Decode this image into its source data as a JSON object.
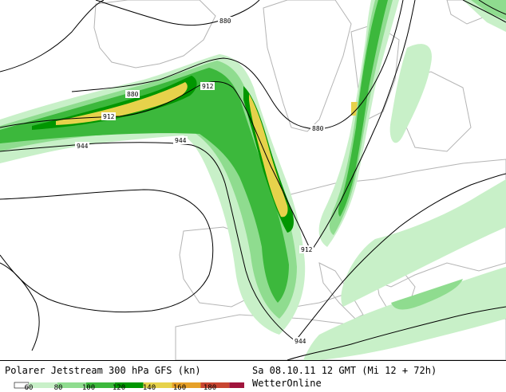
{
  "header": {
    "title": "Polarer Jetstream 300 hPa GFS (kn)",
    "datetime": "Sa 08.10.11 12 GMT (Mi 12 + 72h)",
    "credit": "WetterOnline"
  },
  "legend": {
    "ticks": [
      "60",
      "80",
      "100",
      "120",
      "140",
      "160",
      "180"
    ],
    "colors": [
      "#c8f0c8",
      "#8fdc8f",
      "#3cb83c",
      "#009600",
      "#e6d24b",
      "#e6a028",
      "#c84632",
      "#a0143c"
    ]
  },
  "contours": {
    "labels": [
      "880",
      "880",
      "880",
      "912",
      "912",
      "912",
      "944",
      "944",
      "944"
    ],
    "line_color": "#000000",
    "coast_color": "#a8a8a8"
  }
}
